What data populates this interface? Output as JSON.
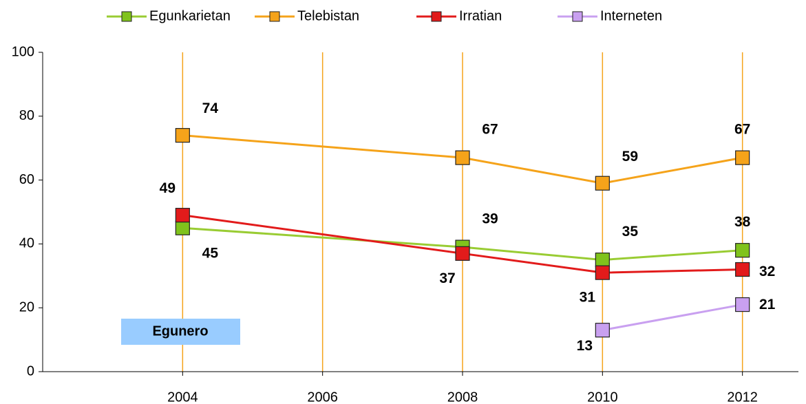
{
  "chart_data": {
    "type": "line",
    "series": [
      {
        "name": "Egunkarietan",
        "color": "#99cc33",
        "marker_color": "#80c31c",
        "x": [
          2004,
          2008,
          2010,
          2012
        ],
        "values": [
          45,
          39,
          35,
          38
        ]
      },
      {
        "name": "Telebistan",
        "color": "#f5a31a",
        "marker_color": "#f5a31a",
        "x": [
          2004,
          2008,
          2010,
          2012
        ],
        "values": [
          74,
          67,
          59,
          67
        ]
      },
      {
        "name": "Irratian",
        "color": "#e21b1b",
        "marker_color": "#e21b1b",
        "x": [
          2004,
          2008,
          2010,
          2012
        ],
        "values": [
          49,
          37,
          31,
          32
        ]
      },
      {
        "name": "Interneten",
        "color": "#c9a0f0",
        "marker_color": "#c9a0f0",
        "x": [
          2010,
          2012
        ],
        "values": [
          13,
          21
        ]
      }
    ],
    "xlim": [
      2002,
      2012.8
    ],
    "xticks": [
      2004,
      2006,
      2008,
      2010,
      2012
    ],
    "ylim": [
      0,
      100
    ],
    "yticks": [
      0,
      20,
      40,
      60,
      80,
      100
    ],
    "grid_color": "#f5a31a",
    "annotation": "Egunero"
  }
}
